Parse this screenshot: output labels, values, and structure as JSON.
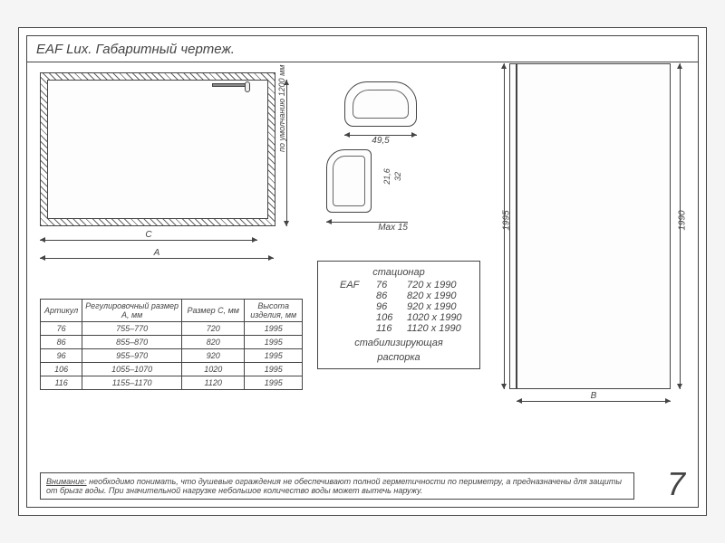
{
  "title": "EAF Lux. Габаритный чертеж.",
  "main_view": {
    "height_label": "по умолчанию 1200 мм",
    "dim_C": "С",
    "dim_A": "А"
  },
  "profiles": {
    "dim_49_5": "49,5",
    "dim_21_6": "21,6",
    "dim_32": "32",
    "dim_max15": "Max 15"
  },
  "table": {
    "columns": [
      "Артикул",
      "Регулировочный размер А, мм",
      "Размер С, мм",
      "Высота изделия, мм"
    ],
    "col_widths": [
      "16%",
      "38%",
      "24%",
      "22%"
    ],
    "rows": [
      [
        "76",
        "755–770",
        "720",
        "1995"
      ],
      [
        "86",
        "855–870",
        "820",
        "1995"
      ],
      [
        "96",
        "955–970",
        "920",
        "1995"
      ],
      [
        "106",
        "1055–1070",
        "1020",
        "1995"
      ],
      [
        "116",
        "1155–1170",
        "1120",
        "1995"
      ]
    ]
  },
  "sizes_box": {
    "header": "стационар",
    "label": "EAF",
    "rows": [
      {
        "art": "76",
        "size": "720 x 1990"
      },
      {
        "art": "86",
        "size": "820 x 1990"
      },
      {
        "art": "96",
        "size": "920 x 1990"
      },
      {
        "art": "106",
        "size": "1020 x 1990"
      },
      {
        "art": "116",
        "size": "1120 x 1990"
      }
    ],
    "footer1": "стабилизирующая",
    "footer2": "распорка"
  },
  "side_view": {
    "dim_1995": "1995",
    "dim_1990": "1990",
    "dim_B": "В"
  },
  "note": {
    "label": "Внимание:",
    "text": "необходимо понимать, что душевые ограждения не обеспечивают полной герметичности по периметру, а предназначены для защиты от брызг воды. При значительной нагрузке небольшое количество воды может вытечь наружу."
  },
  "page_number": "7",
  "colors": {
    "line": "#444444",
    "bg": "#ffffff",
    "hatch": "#666666"
  }
}
